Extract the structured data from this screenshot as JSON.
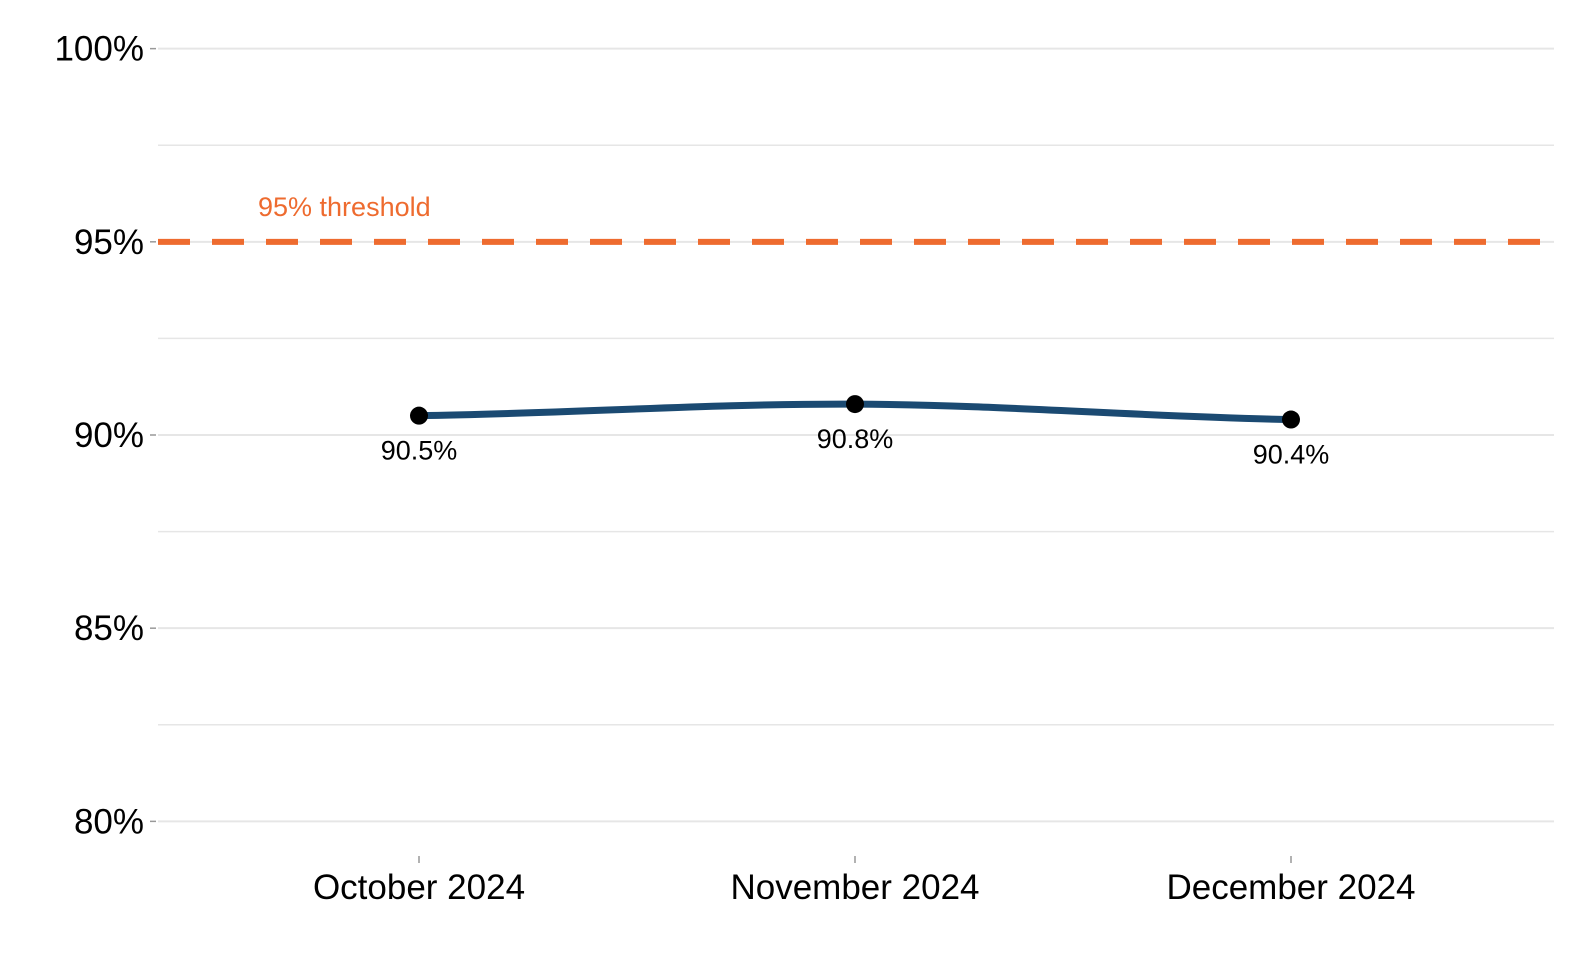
{
  "chart_data": {
    "type": "line",
    "title": "",
    "xlabel": "",
    "ylabel": "",
    "categories": [
      "October 2024",
      "November 2024",
      "December 2024"
    ],
    "series": [
      {
        "values": [
          90.5,
          90.8,
          90.4
        ],
        "data_labels": [
          "90.5%",
          "90.8%",
          "90.4%"
        ],
        "color": "#1b4a72",
        "marker_color": "#000000",
        "smooth": true
      }
    ],
    "ylim": [
      79,
      101
    ],
    "y_ticks": [
      80,
      85,
      90,
      95,
      100
    ],
    "y_tick_labels": [
      "80%",
      "85%",
      "90%",
      "95%",
      "100%"
    ],
    "y_minor_ticks": [
      82.5,
      87.5,
      92.5,
      97.5
    ],
    "reference_line": {
      "value": 95,
      "label": "95% threshold",
      "color": "#ee6b2f",
      "style": "dashed"
    },
    "grid": true,
    "legend": "none",
    "grid_color": "#e6e6e6"
  }
}
